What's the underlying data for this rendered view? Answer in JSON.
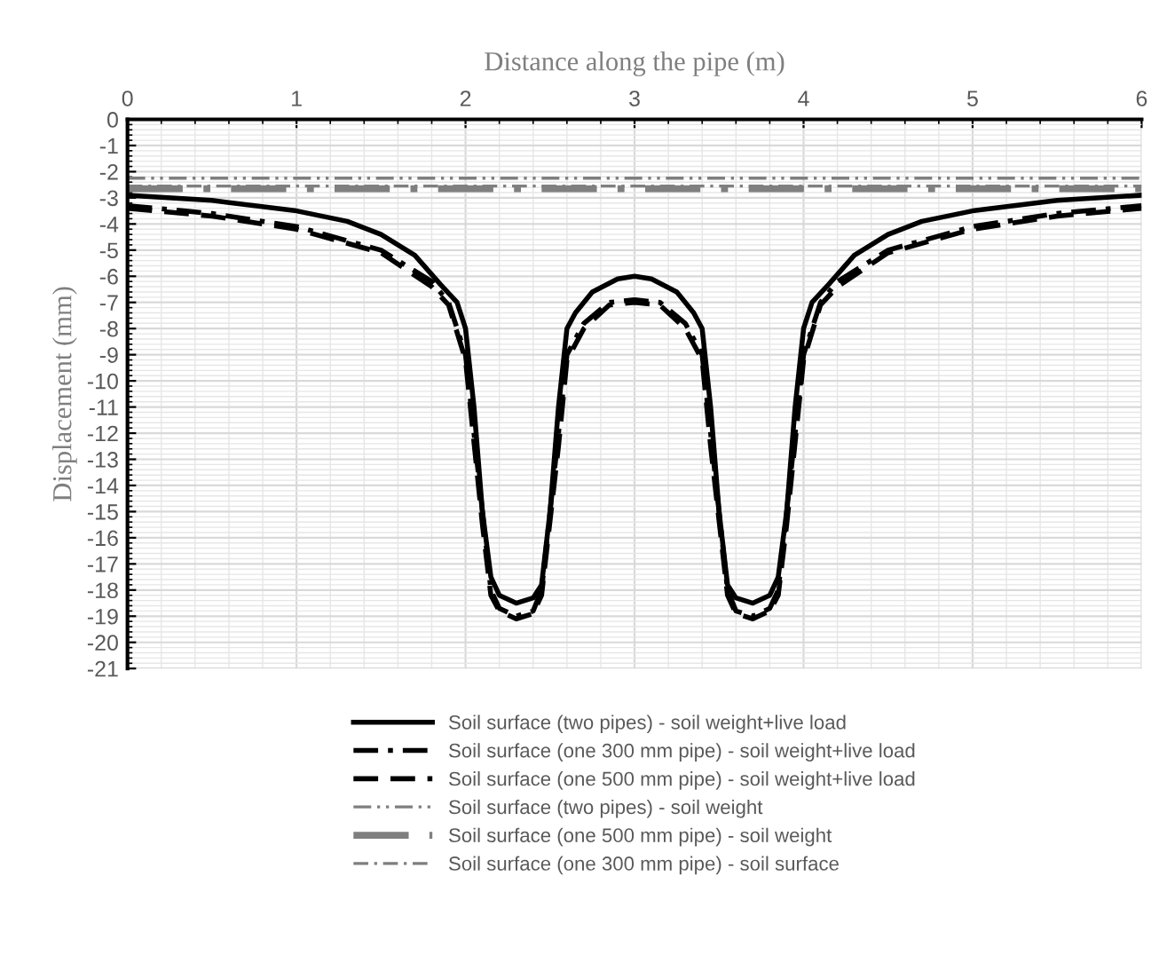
{
  "chart_data": {
    "type": "line",
    "xlabel": "Distance along the pipe (m)",
    "ylabel": "Displacement (mm)",
    "xlim": [
      0,
      6
    ],
    "xticks": [
      0,
      1,
      2,
      3,
      4,
      5,
      6
    ],
    "ylim": [
      -21,
      0
    ],
    "yticks": [
      -21,
      -20,
      -19,
      -18,
      -17,
      -16,
      -15,
      -14,
      -13,
      -12,
      -11,
      -10,
      -9,
      -8,
      -7,
      -6,
      -5,
      -4,
      -3,
      -2,
      -1,
      0
    ],
    "grid": true,
    "legend": "bottom",
    "marker": "none",
    "series": [
      {
        "name": "Soil surface (two pipes) - soil weight+live load",
        "color": "#000000",
        "line_style": "solid",
        "x": [
          0,
          0.5,
          1,
          1.3,
          1.5,
          1.7,
          1.85,
          1.95,
          2.0,
          2.05,
          2.1,
          2.15,
          2.2,
          2.3,
          2.4,
          2.45,
          2.5,
          2.55,
          2.6,
          2.65,
          2.75,
          2.9,
          3.0,
          3.1,
          3.25,
          3.35,
          3.4,
          3.45,
          3.5,
          3.55,
          3.6,
          3.7,
          3.8,
          3.85,
          3.9,
          3.95,
          4.0,
          4.05,
          4.15,
          4.3,
          4.5,
          4.7,
          5.0,
          5.5,
          6.0
        ],
        "values": [
          -2.9,
          -3.1,
          -3.5,
          -3.9,
          -4.4,
          -5.2,
          -6.3,
          -7.0,
          -8,
          -11,
          -15,
          -17.5,
          -18.2,
          -18.5,
          -18.3,
          -17.8,
          -15,
          -11,
          -8,
          -7.4,
          -6.6,
          -6.1,
          -6.0,
          -6.1,
          -6.6,
          -7.4,
          -8,
          -11,
          -15,
          -17.8,
          -18.3,
          -18.5,
          -18.2,
          -17.5,
          -15,
          -11,
          -8,
          -7.0,
          -6.3,
          -5.2,
          -4.4,
          -3.9,
          -3.5,
          -3.1,
          -2.9
        ]
      },
      {
        "name": "Soil surface (one 300 mm pipe) - soil weight+live load",
        "color": "#000000",
        "line_style": "dashdot",
        "x": [
          0,
          0.5,
          1,
          1.5,
          1.8,
          1.9,
          2.0,
          2.1,
          2.15,
          2.2,
          2.3,
          2.4,
          2.45,
          2.55,
          2.6,
          2.7,
          2.85,
          3.0,
          3.15,
          3.3,
          3.4,
          3.45,
          3.55,
          3.6,
          3.7,
          3.8,
          3.85,
          3.9,
          4.0,
          4.1,
          4.2,
          4.5,
          5.0,
          5.5,
          6.0
        ],
        "values": [
          -3.3,
          -3.6,
          -4.1,
          -5.0,
          -6.2,
          -7.0,
          -9,
          -15,
          -18,
          -18.7,
          -19.0,
          -18.8,
          -18,
          -12,
          -9,
          -7.8,
          -7.0,
          -6.9,
          -7.0,
          -7.8,
          -9,
          -12,
          -18,
          -18.8,
          -19.0,
          -18.7,
          -18,
          -15,
          -9,
          -7.0,
          -6.2,
          -5.0,
          -4.1,
          -3.6,
          -3.3
        ]
      },
      {
        "name": "Soil surface (one 500 mm pipe) - soil weight+live load",
        "color": "#000000",
        "line_style": "dashed",
        "x": [
          0,
          0.5,
          1,
          1.5,
          1.8,
          1.9,
          2.0,
          2.1,
          2.15,
          2.2,
          2.3,
          2.4,
          2.45,
          2.55,
          2.6,
          2.7,
          2.85,
          3.0,
          3.15,
          3.3,
          3.4,
          3.45,
          3.55,
          3.6,
          3.7,
          3.8,
          3.85,
          3.9,
          4.0,
          4.1,
          4.2,
          4.5,
          5.0,
          5.5,
          6.0
        ],
        "values": [
          -3.4,
          -3.7,
          -4.2,
          -5.1,
          -6.4,
          -7.1,
          -9.2,
          -15.5,
          -18.2,
          -18.8,
          -19.1,
          -18.9,
          -18.2,
          -12.5,
          -9.2,
          -8.0,
          -7.1,
          -7.0,
          -7.1,
          -8.0,
          -9.2,
          -12.5,
          -18.2,
          -18.9,
          -19.1,
          -18.8,
          -18.2,
          -15.5,
          -9.2,
          -7.1,
          -6.4,
          -5.1,
          -4.2,
          -3.7,
          -3.4
        ]
      },
      {
        "name": "Soil surface (two pipes) - soil weight",
        "color": "#7f7f7f",
        "line_style": "dashdotdot",
        "x": [
          0,
          6
        ],
        "values": [
          -2.25,
          -2.25
        ]
      },
      {
        "name": "Soil surface (one 500 mm pipe) - soil weight",
        "color": "#7f7f7f",
        "line_style": "longdashdot",
        "x": [
          0,
          6
        ],
        "values": [
          -2.65,
          -2.65
        ]
      },
      {
        "name": "Soil surface (one 300 mm pipe) - soil surface",
        "color": "#7f7f7f",
        "line_style": "dashdot",
        "x": [
          0,
          6
        ],
        "values": [
          -2.55,
          -2.55
        ]
      }
    ]
  }
}
